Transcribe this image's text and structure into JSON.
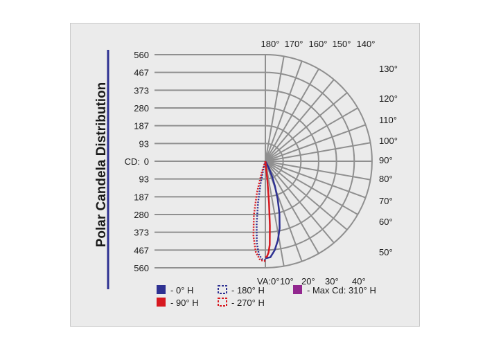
{
  "chart_data": {
    "type": "polar",
    "title": "Polar Candela Distribution",
    "radial_unit_label": "CD:",
    "radial_ticks_upper": [
      "560",
      "467",
      "373",
      "280",
      "187",
      "93"
    ],
    "center_tick": "0",
    "radial_ticks_lower": [
      "93",
      "187",
      "280",
      "373",
      "467",
      "560"
    ],
    "rmax": 560,
    "top_angle_labels": [
      "180°",
      "170°",
      "160°",
      "150°",
      "140°"
    ],
    "right_angle_labels": [
      "130°",
      "120°",
      "110°",
      "100°",
      "90°",
      "80°",
      "70°",
      "60°",
      "50°"
    ],
    "bottom_angle_labels": [
      "VA:0°",
      "10°",
      "20°",
      "30°",
      "40°"
    ],
    "angle_step_deg": 10,
    "series": [
      {
        "name": "0° H",
        "color": "#2e3192",
        "dashed": false,
        "points": [
          [
            0,
            510
          ],
          [
            3,
            505
          ],
          [
            6,
            470
          ],
          [
            9,
            420
          ],
          [
            12,
            360
          ],
          [
            15,
            285
          ],
          [
            18,
            210
          ],
          [
            21,
            140
          ],
          [
            24,
            85
          ],
          [
            27,
            40
          ],
          [
            30,
            0
          ]
        ]
      },
      {
        "name": "180° H",
        "color": "#2e3192",
        "dashed": true,
        "points": [
          [
            0,
            520
          ],
          [
            2,
            515
          ],
          [
            4,
            490
          ],
          [
            6,
            430
          ],
          [
            8,
            330
          ],
          [
            10,
            220
          ],
          [
            12,
            120
          ],
          [
            14,
            40
          ],
          [
            15,
            0
          ]
        ]
      },
      {
        "name": "90° H",
        "color": "#d71920",
        "dashed": false,
        "points": [
          [
            0,
            505
          ],
          [
            1,
            500
          ],
          [
            2,
            480
          ],
          [
            3,
            440
          ],
          [
            4,
            340
          ],
          [
            5,
            220
          ],
          [
            6,
            100
          ],
          [
            7,
            0
          ]
        ]
      },
      {
        "name": "270° H",
        "color": "#d71920",
        "dashed": true,
        "points": [
          [
            0,
            525
          ],
          [
            3,
            520
          ],
          [
            6,
            480
          ],
          [
            9,
            400
          ],
          [
            12,
            290
          ],
          [
            15,
            170
          ],
          [
            18,
            60
          ],
          [
            19,
            0
          ]
        ]
      }
    ],
    "legend": [
      {
        "label": "- 0° H",
        "color": "#2e3192",
        "style": "solid"
      },
      {
        "label": "- 180° H",
        "color": "#2e3192",
        "style": "dashed"
      },
      {
        "label": "- Max Cd: 310° H",
        "color": "#92278f",
        "style": "solid"
      },
      {
        "label": "- 90° H",
        "color": "#d71920",
        "style": "solid"
      },
      {
        "label": "- 270° H",
        "color": "#d71920",
        "style": "dashed"
      }
    ]
  }
}
